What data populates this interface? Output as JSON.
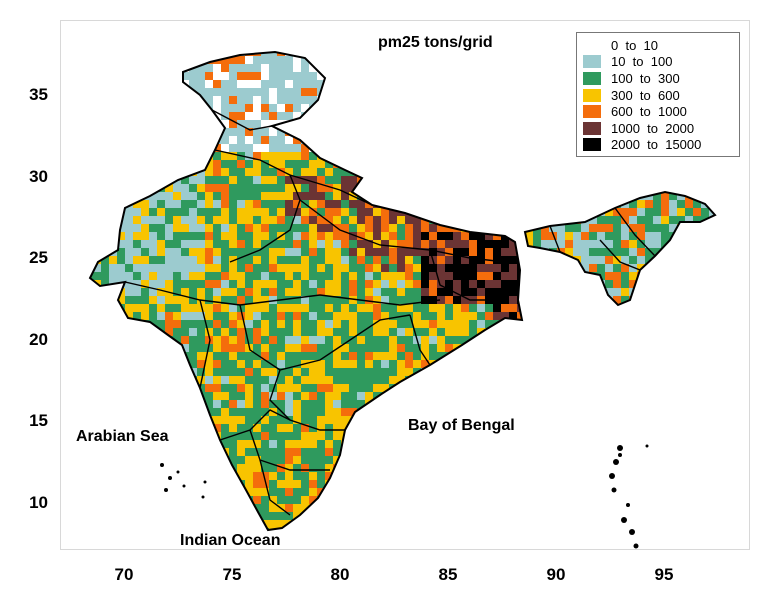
{
  "title": "pm25 tons/grid",
  "legend": [
    {
      "label": "0  to  10",
      "color": "#ffffff"
    },
    {
      "label": "10  to  100",
      "color": "#9ccbcf"
    },
    {
      "label": "100  to  300",
      "color": "#2f9a5e"
    },
    {
      "label": "300  to  600",
      "color": "#f8c400"
    },
    {
      "label": "600  to  1000",
      "color": "#f46d0c"
    },
    {
      "label": "1000  to  2000",
      "color": "#6b3434"
    },
    {
      "label": "2000  to  15000",
      "color": "#000000"
    }
  ],
  "x_axis": {
    "ticks": [
      "70",
      "75",
      "80",
      "85",
      "90",
      "95"
    ],
    "range": [
      67,
      98
    ]
  },
  "y_axis": {
    "ticks": [
      "10",
      "15",
      "20",
      "25",
      "30",
      "35"
    ],
    "range": [
      7.2,
      38.5
    ]
  },
  "annotations": {
    "arabian_sea": "Arabian Sea",
    "bay_of_bengal": "Bay of Bengal",
    "indian_ocean": "Indian Ocean"
  }
}
